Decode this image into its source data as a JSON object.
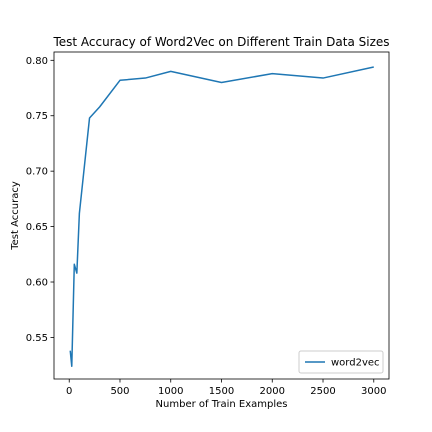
{
  "chart_data": {
    "type": "line",
    "title": "Test Accuracy of Word2Vec on Different Train Data Sizes",
    "xlabel": "Number of Train Examples",
    "ylabel": "Test Accuracy",
    "xlim": [
      -150,
      3150
    ],
    "ylim": [
      0.5125,
      0.8075
    ],
    "xticks": [
      0,
      500,
      1000,
      1500,
      2000,
      2500,
      3000
    ],
    "yticks": [
      0.55,
      0.6,
      0.65,
      0.7,
      0.75,
      0.8
    ],
    "xtick_labels": [
      "0",
      "500",
      "1000",
      "1500",
      "2000",
      "2500",
      "3000"
    ],
    "ytick_labels": [
      "0.55",
      "0.60",
      "0.65",
      "0.70",
      "0.75",
      "0.80"
    ],
    "grid": false,
    "legend_position": "bottom-right",
    "series": [
      {
        "name": "word2vec",
        "color": "#1f77b4",
        "x": [
          10,
          25,
          50,
          75,
          100,
          200,
          300,
          500,
          750,
          1000,
          1500,
          2000,
          2500,
          3000
        ],
        "y": [
          0.538,
          0.524,
          0.616,
          0.608,
          0.662,
          0.748,
          0.758,
          0.782,
          0.784,
          0.79,
          0.78,
          0.788,
          0.784,
          0.794
        ]
      }
    ]
  }
}
